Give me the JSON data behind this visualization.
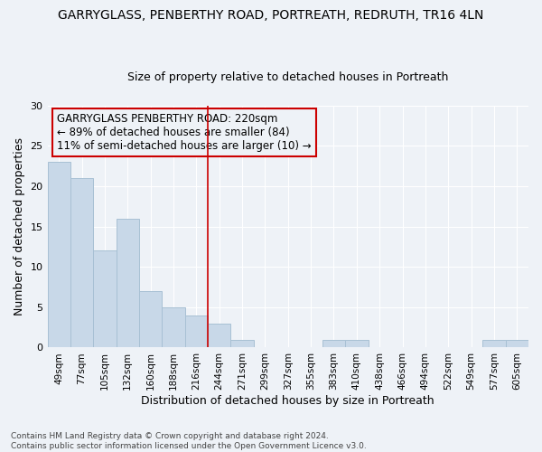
{
  "title": "GARRYGLASS, PENBERTHY ROAD, PORTREATH, REDRUTH, TR16 4LN",
  "subtitle": "Size of property relative to detached houses in Portreath",
  "xlabel": "Distribution of detached houses by size in Portreath",
  "ylabel": "Number of detached properties",
  "bin_labels": [
    "49sqm",
    "77sqm",
    "105sqm",
    "132sqm",
    "160sqm",
    "188sqm",
    "216sqm",
    "244sqm",
    "271sqm",
    "299sqm",
    "327sqm",
    "355sqm",
    "383sqm",
    "410sqm",
    "438sqm",
    "466sqm",
    "494sqm",
    "522sqm",
    "549sqm",
    "577sqm",
    "605sqm"
  ],
  "bar_values": [
    23,
    21,
    12,
    16,
    7,
    5,
    4,
    3,
    1,
    0,
    0,
    0,
    1,
    1,
    0,
    0,
    0,
    0,
    0,
    1,
    1
  ],
  "bar_color": "#c8d8e8",
  "bar_edgecolor": "#a8c0d4",
  "vline_x": 6.5,
  "vline_color": "#cc0000",
  "annotation_text": "GARRYGLASS PENBERTHY ROAD: 220sqm\n← 89% of detached houses are smaller (84)\n11% of semi-detached houses are larger (10) →",
  "annotation_box_edgecolor": "#cc0000",
  "annotation_fontsize": 8.5,
  "ylim": [
    0,
    30
  ],
  "yticks": [
    0,
    5,
    10,
    15,
    20,
    25,
    30
  ],
  "footer": "Contains HM Land Registry data © Crown copyright and database right 2024.\nContains public sector information licensed under the Open Government Licence v3.0.",
  "bg_color": "#eef2f7",
  "grid_color": "#ffffff",
  "title_fontsize": 10,
  "subtitle_fontsize": 9,
  "xlabel_fontsize": 9,
  "ylabel_fontsize": 9
}
